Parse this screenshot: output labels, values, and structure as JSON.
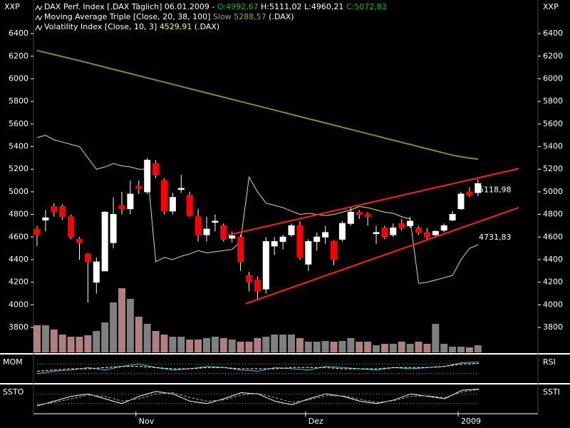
{
  "chart_data": {
    "type": "candlestick",
    "axis_label": "XXP",
    "header": [
      [
        {
          "text": "DAX Perf. Index [.DAX  Täglich] 06.01.2009 - ",
          "color": "#ffffff"
        },
        {
          "text": "O:4992,67",
          "color": "#00c000"
        },
        {
          "text": " H:5111,02 L:4960,21 ",
          "color": "#ffffff"
        },
        {
          "text": "C:5072,83",
          "color": "#00c000"
        }
      ],
      [
        {
          "text": "Moving Average Triple [Close, 20, 38, 100] ",
          "color": "#ffffff"
        },
        {
          "text": "Slow 5288,57",
          "color": "#a0a040"
        },
        {
          "text": " (.DAX)",
          "color": "#ffffff"
        }
      ],
      [
        {
          "text": "Volatility Index [Close, 10, 3] ",
          "color": "#ffffff"
        },
        {
          "text": "4529,91",
          "color": "#ffff40"
        },
        {
          "text": " (.DAX)",
          "color": "#ffffff"
        }
      ]
    ],
    "categories": [
      null,
      null,
      null,
      null,
      null,
      null,
      null,
      null,
      null,
      null,
      null,
      null,
      "Nov",
      null,
      null,
      null,
      null,
      null,
      null,
      null,
      null,
      null,
      null,
      null,
      null,
      null,
      null,
      null,
      null,
      null,
      null,
      null,
      "Dez",
      null,
      null,
      null,
      null,
      null,
      null,
      null,
      null,
      null,
      null,
      null,
      null,
      null,
      null,
      null,
      null,
      null,
      "2009",
      null,
      null
    ],
    "open": [
      4670,
      4750,
      4870,
      4870,
      4780,
      4580,
      4450,
      4200,
      4300,
      4550,
      4880,
      4850,
      5050,
      5000,
      5250,
      5100,
      4830,
      5020,
      4970,
      4780,
      4620,
      4730,
      4700,
      4590,
      4600,
      4260,
      4220,
      4140,
      4520,
      4560,
      4620,
      4700,
      4360,
      4560,
      4600,
      4560,
      4580,
      4720,
      4820,
      4800,
      4630,
      4680,
      4620,
      4720,
      4700,
      4680,
      4640,
      4620,
      4660,
      4750,
      4850,
      5000,
      4992.67
    ],
    "high": [
      4700,
      4840,
      4900,
      4890,
      4800,
      4600,
      4460,
      4420,
      4830,
      4950,
      5000,
      5100,
      5100,
      5300,
      5280,
      5120,
      4990,
      5150,
      5000,
      4850,
      4780,
      4800,
      4720,
      4650,
      4620,
      4290,
      4250,
      4600,
      4600,
      4620,
      4720,
      4740,
      4580,
      4640,
      4700,
      4570,
      4740,
      4860,
      4840,
      4820,
      4700,
      4700,
      4720,
      4760,
      4780,
      4700,
      4680,
      4660,
      4720,
      4830,
      5000,
      5040,
      5111.02
    ],
    "low": [
      4520,
      4650,
      4780,
      4750,
      4580,
      4400,
      4020,
      4100,
      4300,
      4500,
      4800,
      4800,
      4980,
      4980,
      5120,
      4800,
      4800,
      4990,
      4780,
      4560,
      4560,
      4650,
      4560,
      4550,
      4300,
      4120,
      4040,
      4100,
      4440,
      4490,
      4600,
      4400,
      4300,
      4480,
      4540,
      4350,
      4560,
      4700,
      4760,
      4700,
      4540,
      4580,
      4600,
      4660,
      4680,
      4620,
      4580,
      4600,
      4640,
      4740,
      4840,
      4950,
      4960.21
    ],
    "close": [
      4620,
      4770,
      4820,
      4780,
      4600,
      4550,
      4380,
      4380,
      4820,
      4800,
      4850,
      4980,
      5030,
      5280,
      5150,
      4830,
      4950,
      5030,
      4790,
      4620,
      4670,
      4740,
      4580,
      4610,
      4380,
      4200,
      4120,
      4560,
      4560,
      4600,
      4700,
      4420,
      4560,
      4600,
      4640,
      4400,
      4720,
      4820,
      4800,
      4780,
      4640,
      4600,
      4680,
      4680,
      4740,
      4640,
      4600,
      4650,
      4700,
      4800,
      4980,
      4970,
      5072.83
    ],
    "up_color": "#ffffff",
    "down_color": "#ff0000",
    "ylim": [
      3573,
      6697
    ],
    "yticks": [
      3800,
      4000,
      4200,
      4400,
      4600,
      4800,
      5000,
      5200,
      5400,
      5600,
      5800,
      6000,
      6200,
      6400
    ],
    "series": [
      {
        "name": "Moving Average Triple",
        "color": "#8a8a1e",
        "values": [
          6250,
          6232,
          6214,
          6196,
          6178,
          6160,
          6141,
          6122,
          6103,
          6084,
          6065,
          6046,
          6027,
          6008,
          5989,
          5970,
          5951,
          5932,
          5913,
          5894,
          5875,
          5856,
          5837,
          5818,
          5799,
          5780,
          5761,
          5742,
          5723,
          5704,
          5685,
          5666,
          5647,
          5628,
          5609,
          5590,
          5571,
          5552,
          5533,
          5514,
          5495,
          5476,
          5457,
          5438,
          5419,
          5400,
          5381,
          5362,
          5343,
          5324,
          5310,
          5298,
          5288.57
        ]
      },
      {
        "name": "Volatility Index",
        "color": "#e8e830",
        "values": [
          5480,
          5500,
          5460,
          5440,
          5420,
          5400,
          5300,
          5200,
          5220,
          5250,
          5230,
          5220,
          5200,
          5200,
          4380,
          4420,
          4400,
          4430,
          4450,
          4480,
          4460,
          4470,
          4480,
          4490,
          4560,
          5130,
          5000,
          4900,
          4880,
          4860,
          4830,
          4800,
          4810,
          4800,
          4790,
          4800,
          4820,
          4840,
          4870,
          4860,
          4840,
          4820,
          4810,
          4780,
          4760,
          4190,
          4200,
          4220,
          4240,
          4260,
          4400,
          4500,
          4529.91
        ]
      }
    ],
    "trendlines": [
      {
        "x": [
          22.5,
          56.8
        ],
        "values": [
          4617,
          5205
        ],
        "color": "#ff2020",
        "label": "5118,98"
      },
      {
        "x": [
          24.6,
          56.8
        ],
        "values": [
          4010,
          4860
        ],
        "color": "#ff2020",
        "label": "4731,83"
      }
    ],
    "volume": {
      "values": [
        38,
        38,
        32,
        25,
        22,
        22,
        24,
        30,
        42,
        70,
        90,
        75,
        50,
        40,
        30,
        25,
        22,
        22,
        18,
        18,
        20,
        22,
        20,
        18,
        15,
        15,
        20,
        22,
        25,
        25,
        25,
        20,
        15,
        15,
        16,
        15,
        16,
        20,
        15,
        15,
        10,
        12,
        12,
        15,
        12,
        15,
        12,
        40,
        12,
        8,
        8,
        7,
        10
      ],
      "lim": [
        0,
        100
      ],
      "up_color": "#808080",
      "down_color": "#b08080"
    },
    "panels": [
      {
        "left": "MOM",
        "right": "RSI",
        "lim": [
          0,
          100
        ],
        "series": [
          {
            "color": "#40c8c8",
            "values": [
              30,
              40,
              45,
              55,
              45,
              60,
              70,
              55,
              45,
              50,
              60,
              55,
              45,
              40,
              55,
              50,
              45,
              60,
              55,
              50,
              45,
              55,
              50,
              55,
              60,
              75,
              78
            ]
          },
          {
            "color": "#ffffff",
            "values": [
              40,
              45,
              50,
              50,
              55,
              60,
              60,
              55,
              50,
              50,
              55,
              55,
              50,
              50,
              50,
              55,
              55,
              55,
              50,
              50,
              50,
              55,
              55,
              55,
              60,
              70,
              72
            ]
          }
        ]
      },
      {
        "left": "SSTO",
        "right": "SSTI",
        "lim": [
          0,
          100
        ],
        "series": [
          {
            "color": "#ffffff",
            "values": [
              20,
              40,
              60,
              70,
              50,
              30,
              60,
              80,
              70,
              40,
              30,
              50,
              75,
              70,
              40,
              25,
              50,
              70,
              60,
              40,
              30,
              45,
              70,
              60,
              50,
              85,
              90
            ]
          },
          {
            "color": "#a0a0a0",
            "values": [
              25,
              35,
              50,
              65,
              60,
              40,
              50,
              70,
              75,
              55,
              40,
              45,
              65,
              72,
              55,
              35,
              45,
              62,
              62,
              48,
              35,
              42,
              60,
              62,
              55,
              78,
              88
            ]
          }
        ]
      }
    ]
  }
}
